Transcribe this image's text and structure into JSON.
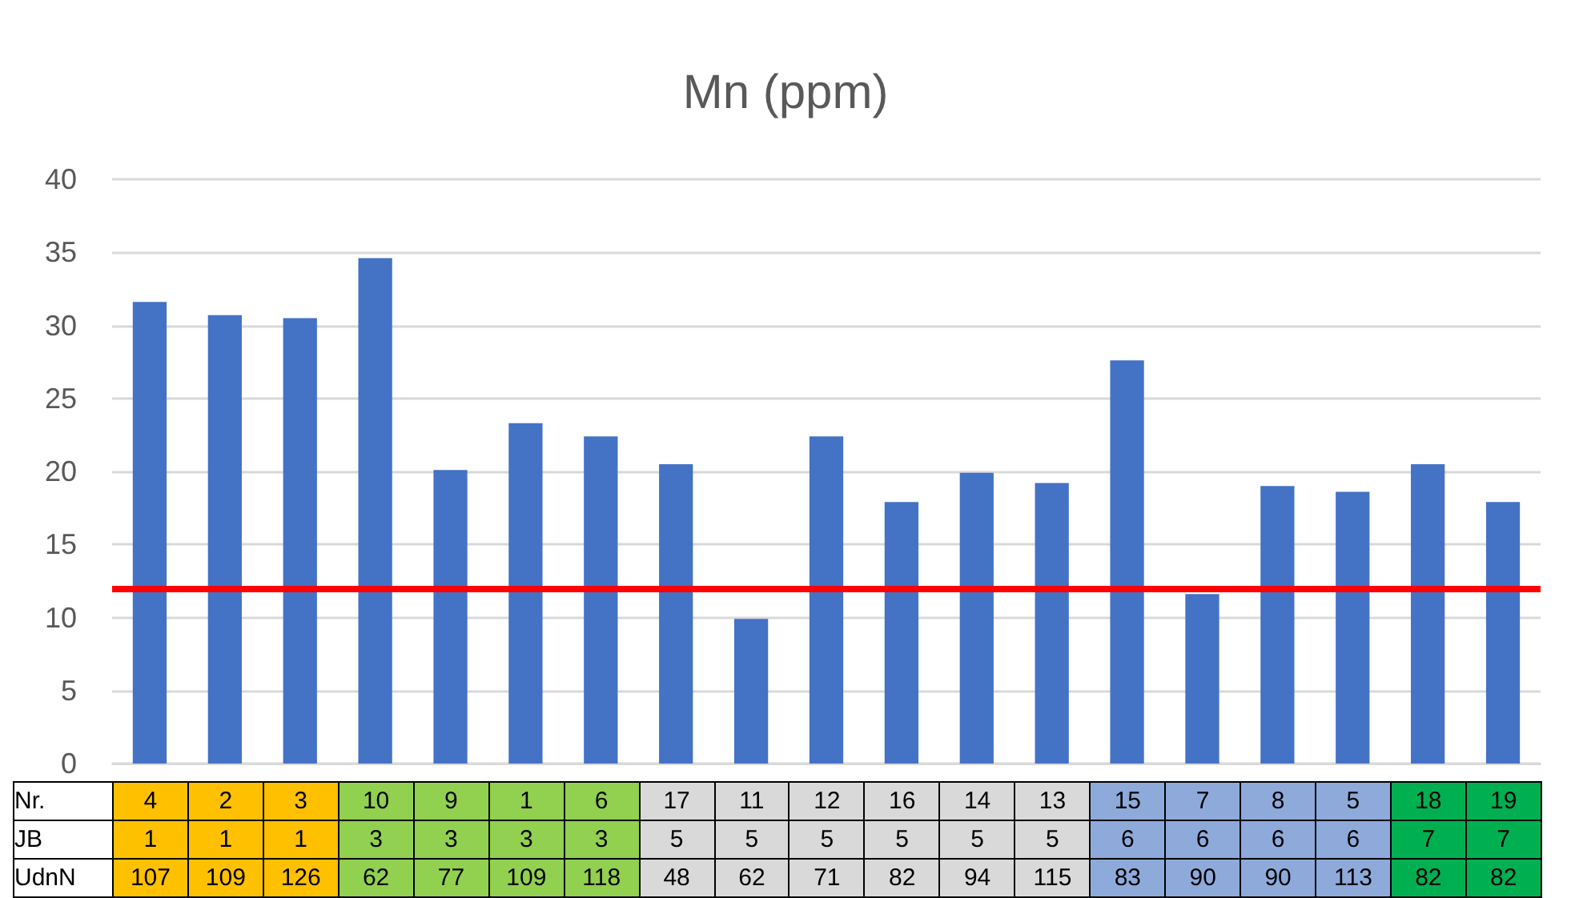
{
  "chart_data": [
    {
      "type": "bar",
      "title": "Mn (ppm)",
      "categories": [
        null,
        null,
        null,
        null,
        null,
        null,
        null,
        null,
        null,
        null,
        null,
        null,
        null,
        null,
        null,
        null,
        null,
        null,
        null
      ],
      "values": [
        31.6,
        30.7,
        30.5,
        34.6,
        20.1,
        23.3,
        22.4,
        20.5,
        9.9,
        22.4,
        17.9,
        19.9,
        19.2,
        27.6,
        11.6,
        19.0,
        18.6,
        20.5,
        17.9
      ],
      "color": "#4472c4",
      "ylim": [
        0,
        40
      ],
      "yticks": [
        0,
        5,
        10,
        15,
        20,
        25,
        30,
        35,
        40
      ],
      "grid": "y",
      "ref_lines": [
        {
          "axis": "y",
          "value": 12,
          "color": "#ff0000"
        }
      ]
    },
    {
      "type": "heatmap",
      "data_labels": true,
      "categories": [
        null,
        null,
        null,
        null,
        null,
        null,
        null,
        null,
        null,
        null,
        null,
        null,
        null,
        null,
        null,
        null,
        null,
        null,
        null
      ],
      "y_categories": [
        "Nr.",
        "JB",
        "UdnN"
      ],
      "cells": [
        [
          4,
          2,
          3,
          10,
          9,
          1,
          6,
          17,
          11,
          12,
          16,
          14,
          13,
          15,
          7,
          8,
          5,
          18,
          19
        ],
        [
          1,
          1,
          1,
          3,
          3,
          3,
          3,
          5,
          5,
          5,
          5,
          5,
          5,
          6,
          6,
          6,
          6,
          7,
          7
        ],
        [
          107,
          109,
          126,
          62,
          77,
          109,
          118,
          48,
          62,
          71,
          82,
          94,
          115,
          83,
          90,
          90,
          113,
          82,
          82
        ]
      ],
      "colors": [
        "#ffc000",
        "#ffc000",
        "#ffc000",
        "#92d050",
        "#92d050",
        "#92d050",
        "#92d050",
        "#d9d9d9",
        "#d9d9d9",
        "#d9d9d9",
        "#d9d9d9",
        "#d9d9d9",
        "#d9d9d9",
        "#8eaadb",
        "#8eaadb",
        "#8eaadb",
        "#8eaadb",
        "#00b050",
        "#00b050"
      ]
    }
  ]
}
